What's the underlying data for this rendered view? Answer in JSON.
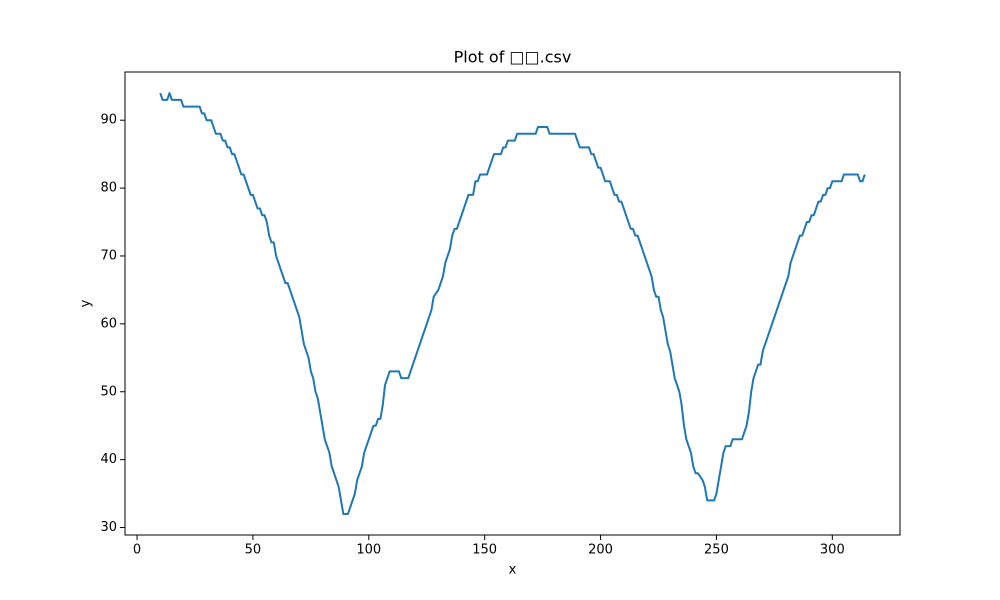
{
  "chart_data": {
    "type": "line",
    "title": "Plot of □□.csv",
    "x_label": "x",
    "y_label": "y",
    "xlim": [
      -5.2,
      329.2
    ],
    "ylim": [
      28.9,
      97.1
    ],
    "xticks": [
      0,
      50,
      100,
      150,
      200,
      250,
      300
    ],
    "yticks": [
      30,
      40,
      50,
      60,
      70,
      80,
      90
    ],
    "x": [
      10,
      11,
      13,
      14,
      15,
      19,
      20,
      27,
      28,
      29,
      30,
      32,
      33,
      34,
      36,
      37,
      38,
      39,
      40,
      41,
      42,
      43,
      44,
      45,
      46,
      47,
      48,
      49,
      50,
      51,
      52,
      53,
      54,
      55,
      56,
      57,
      58,
      59,
      60,
      62,
      64,
      65,
      66,
      68,
      70,
      71,
      72,
      74,
      75,
      76,
      77,
      78,
      79,
      80,
      81,
      83,
      84,
      85,
      87,
      88,
      89,
      91,
      92,
      93,
      94,
      95,
      96,
      97,
      98,
      100,
      101,
      102,
      103,
      104,
      105,
      106,
      107,
      108,
      109,
      113,
      114,
      117,
      118,
      120,
      122,
      124,
      126,
      127,
      128,
      130,
      131,
      132,
      133,
      134,
      135,
      136,
      137,
      138,
      140,
      142,
      143,
      145,
      146,
      147,
      148,
      151,
      152,
      153,
      154,
      157,
      158,
      159,
      160,
      163,
      164,
      172,
      173,
      177,
      178,
      189,
      190,
      191,
      195,
      196,
      197,
      198,
      199,
      200,
      201,
      202,
      204,
      205,
      206,
      207,
      208,
      209,
      210,
      212,
      213,
      214,
      215,
      216,
      218,
      220,
      222,
      223,
      224,
      225,
      226,
      227,
      228,
      229,
      230,
      231,
      232,
      234,
      235,
      236,
      237,
      238,
      239,
      240,
      241,
      242,
      244,
      245,
      246,
      249,
      250,
      251,
      252,
      253,
      254,
      256,
      257,
      261,
      262,
      263,
      264,
      265,
      266,
      267,
      268,
      269,
      270,
      272,
      274,
      276,
      278,
      280,
      281,
      282,
      284,
      285,
      286,
      287,
      288,
      289,
      290,
      291,
      292,
      293,
      294,
      295,
      296,
      297,
      298,
      299,
      300,
      304,
      305,
      311,
      312,
      313,
      314
    ],
    "series": [
      {
        "name": "y",
        "color": "#1f77b4",
        "values": [
          94,
          93,
          93,
          94,
          93,
          93,
          92,
          92,
          91,
          91,
          90,
          90,
          89,
          88,
          88,
          87,
          87,
          86,
          86,
          85,
          85,
          84,
          83,
          82,
          82,
          81,
          80,
          79,
          79,
          78,
          77,
          77,
          76,
          76,
          75,
          73,
          72,
          72,
          70,
          68,
          66,
          66,
          65,
          63,
          61,
          59,
          57,
          55,
          53,
          52,
          50,
          49,
          47,
          45,
          43,
          41,
          39,
          38,
          36,
          34,
          32,
          32,
          33,
          34,
          35,
          37,
          38,
          39,
          41,
          43,
          44,
          45,
          45,
          46,
          46,
          48,
          51,
          52,
          53,
          53,
          52,
          52,
          53,
          55,
          57,
          59,
          61,
          62,
          64,
          65,
          66,
          67,
          69,
          70,
          71,
          73,
          74,
          74,
          76,
          78,
          79,
          79,
          81,
          81,
          82,
          82,
          83,
          84,
          85,
          85,
          86,
          86,
          87,
          87,
          88,
          88,
          89,
          89,
          88,
          88,
          87,
          86,
          86,
          85,
          85,
          84,
          83,
          83,
          82,
          81,
          81,
          80,
          79,
          79,
          78,
          78,
          77,
          75,
          74,
          74,
          73,
          73,
          71,
          69,
          67,
          65,
          64,
          64,
          62,
          61,
          59,
          57,
          56,
          54,
          52,
          50,
          48,
          45,
          43,
          42,
          41,
          39,
          38,
          38,
          37,
          36,
          34,
          34,
          35,
          37,
          39,
          41,
          42,
          42,
          43,
          43,
          44,
          45,
          47,
          50,
          52,
          53,
          54,
          54,
          56,
          58,
          60,
          62,
          64,
          66,
          67,
          69,
          71,
          72,
          73,
          73,
          74,
          75,
          75,
          76,
          76,
          77,
          78,
          78,
          79,
          79,
          80,
          80,
          81,
          81,
          82,
          82,
          81,
          81,
          82
        ]
      }
    ]
  }
}
